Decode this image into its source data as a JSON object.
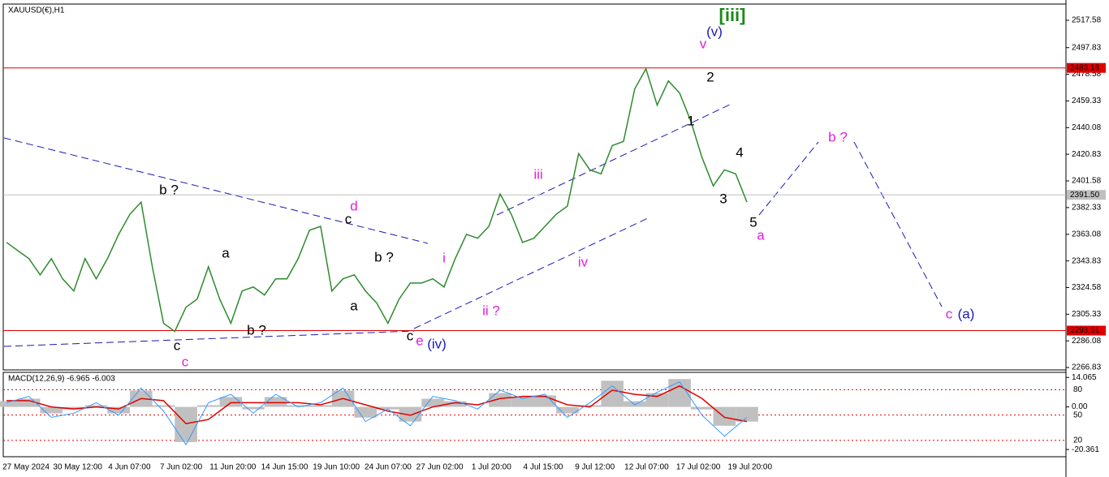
{
  "chart_data": {
    "type": "line",
    "title": "XAUUSD(€),H1",
    "color": "#2e8b2e",
    "date_labels": [
      "27 May 2024",
      "30 May 12:00",
      "4 Jun 07:00",
      "7 Jun 02:00",
      "11 Jun 20:00",
      "14 Jun 15:00",
      "19 Jun 10:00",
      "24 Jun 07:00",
      "27 Jun 02:00",
      "1 Jul 20:00",
      "4 Jul 15:00",
      "9 Jul 12:00",
      "12 Jul 07:00",
      "17 Jul 02:00",
      "19 Jul 20:00"
    ],
    "values": [
      2357.2,
      2351.3,
      2345.5,
      2333.8,
      2345.5,
      2330.9,
      2322.1,
      2345.5,
      2330.9,
      2345.5,
      2363.0,
      2377.5,
      2386.3,
      2339.6,
      2298.8,
      2292.9,
      2310.4,
      2316.3,
      2339.6,
      2316.3,
      2298.8,
      2322.1,
      2325.0,
      2319.2,
      2330.9,
      2330.9,
      2345.5,
      2365.9,
      2368.8,
      2322.1,
      2330.9,
      2333.8,
      2322.1,
      2313.4,
      2298.8,
      2316.3,
      2327.9,
      2327.9,
      2330.9,
      2325.0,
      2345.5,
      2363.0,
      2360.2,
      2368.8,
      2392.1,
      2377.5,
      2357.2,
      2360.2,
      2368.8,
      2377.5,
      2383.4,
      2421.3,
      2409.6,
      2406.7,
      2427.1,
      2430.1,
      2468.0,
      2482.6,
      2456.3,
      2473.8,
      2465.1,
      2444.7,
      2418.4,
      2398.0,
      2409.6,
      2406.7,
      2386.3
    ],
    "ylim": [
      2265.7,
      2529.3
    ],
    "yticks": [
      2517.58,
      2497.83,
      2478.58,
      2459.33,
      2440.08,
      2420.83,
      2401.58,
      2382.33,
      2363.08,
      2343.83,
      2324.58,
      2305.33,
      2286.08,
      2266.83
    ],
    "price_lines": [
      {
        "value": 2483.18,
        "color": "#e00000"
      },
      {
        "value": 2391.5,
        "label": "2391.50",
        "color": "#c0c0c0"
      },
      {
        "value": 2293.51,
        "color": "#e00000"
      }
    ],
    "annotations": [
      {
        "text": "[iii]",
        "color": "#1a8a1a"
      },
      {
        "text": "(v)",
        "color": "#1a1ab4"
      },
      {
        "text": "v",
        "color": "#e020e0"
      },
      {
        "text": "2",
        "color": "#000000"
      },
      {
        "text": "1",
        "color": "#000000"
      },
      {
        "text": "4",
        "color": "#000000"
      },
      {
        "text": "3",
        "color": "#000000"
      },
      {
        "text": "5",
        "color": "#000000"
      },
      {
        "text": "a",
        "color": "#e020e0"
      },
      {
        "text": "b ?",
        "color": "#e020e0"
      },
      {
        "text": "c",
        "color": "#e020e0"
      },
      {
        "text": "(a)",
        "color": "#1a1ab4"
      },
      {
        "text": "iii",
        "color": "#e020e0"
      },
      {
        "text": "iv",
        "color": "#e020e0"
      },
      {
        "text": "i",
        "color": "#e020e0"
      },
      {
        "text": "ii ?",
        "color": "#e020e0"
      },
      {
        "text": "c",
        "color": "#000000"
      },
      {
        "text": "e",
        "color": "#e020e0"
      },
      {
        "text": "(iv)",
        "color": "#1a1ab4"
      },
      {
        "text": "d",
        "color": "#e020e0"
      },
      {
        "text": "c",
        "color": "#000000"
      },
      {
        "text": "b ?",
        "color": "#000000"
      },
      {
        "text": "a",
        "color": "#000000"
      },
      {
        "text": "a",
        "color": "#000000"
      },
      {
        "text": "b ?",
        "color": "#000000"
      },
      {
        "text": "b ?",
        "color": "#000000"
      },
      {
        "text": "c",
        "color": "#000000"
      },
      {
        "text": "c",
        "color": "#e020e0"
      }
    ],
    "macd": {
      "type": "macd",
      "title": "MACD(12,26,9) -6.965 -6.003",
      "histogram": {
        "color": "#c0c0c0",
        "values": [
          2.7,
          3.9,
          -3.1,
          -1.2,
          0.8,
          -3.1,
          7.8,
          0.8,
          -16.8,
          0.8,
          4.7,
          -1.2,
          4.7,
          0.8,
          0.8,
          7.8,
          -5.1,
          -1.2,
          -7.0,
          3.9,
          2.7,
          0,
          6.6,
          4.7,
          5.5,
          -3.1,
          0.8,
          12.5,
          2.7,
          6.6,
          13.3,
          -1.2,
          -9.0,
          -7.0
        ]
      },
      "signal": {
        "color": "#e00000",
        "values": [
          3,
          3,
          0,
          -1,
          0,
          -1,
          4,
          3,
          -8,
          -6,
          2,
          2,
          2,
          2,
          1,
          4,
          1,
          -2,
          -4,
          0,
          2,
          1,
          4,
          5,
          5,
          1,
          0,
          8,
          6,
          5,
          10,
          4,
          -5,
          -7
        ]
      },
      "line": {
        "color": "#3399ff",
        "values": [
          2,
          5,
          -5,
          -3,
          2,
          -4,
          9,
          -2,
          -18,
          2,
          6,
          -3,
          6,
          0,
          2,
          9,
          -7,
          -1,
          -9,
          5,
          3,
          -1,
          8,
          4,
          6,
          -5,
          2,
          10,
          1,
          7,
          12,
          -4,
          -14,
          -5
        ]
      },
      "ylim": [
        -23.8,
        16.5
      ],
      "yticks": [
        14.065,
        {
          "value": 0,
          "label": "0.00"
        },
        -20.361
      ],
      "levels": [
        {
          "value": 8.2,
          "label": "80"
        },
        {
          "value": -3.9,
          "label": "50"
        },
        {
          "value": -16,
          "label": "20"
        }
      ]
    }
  }
}
